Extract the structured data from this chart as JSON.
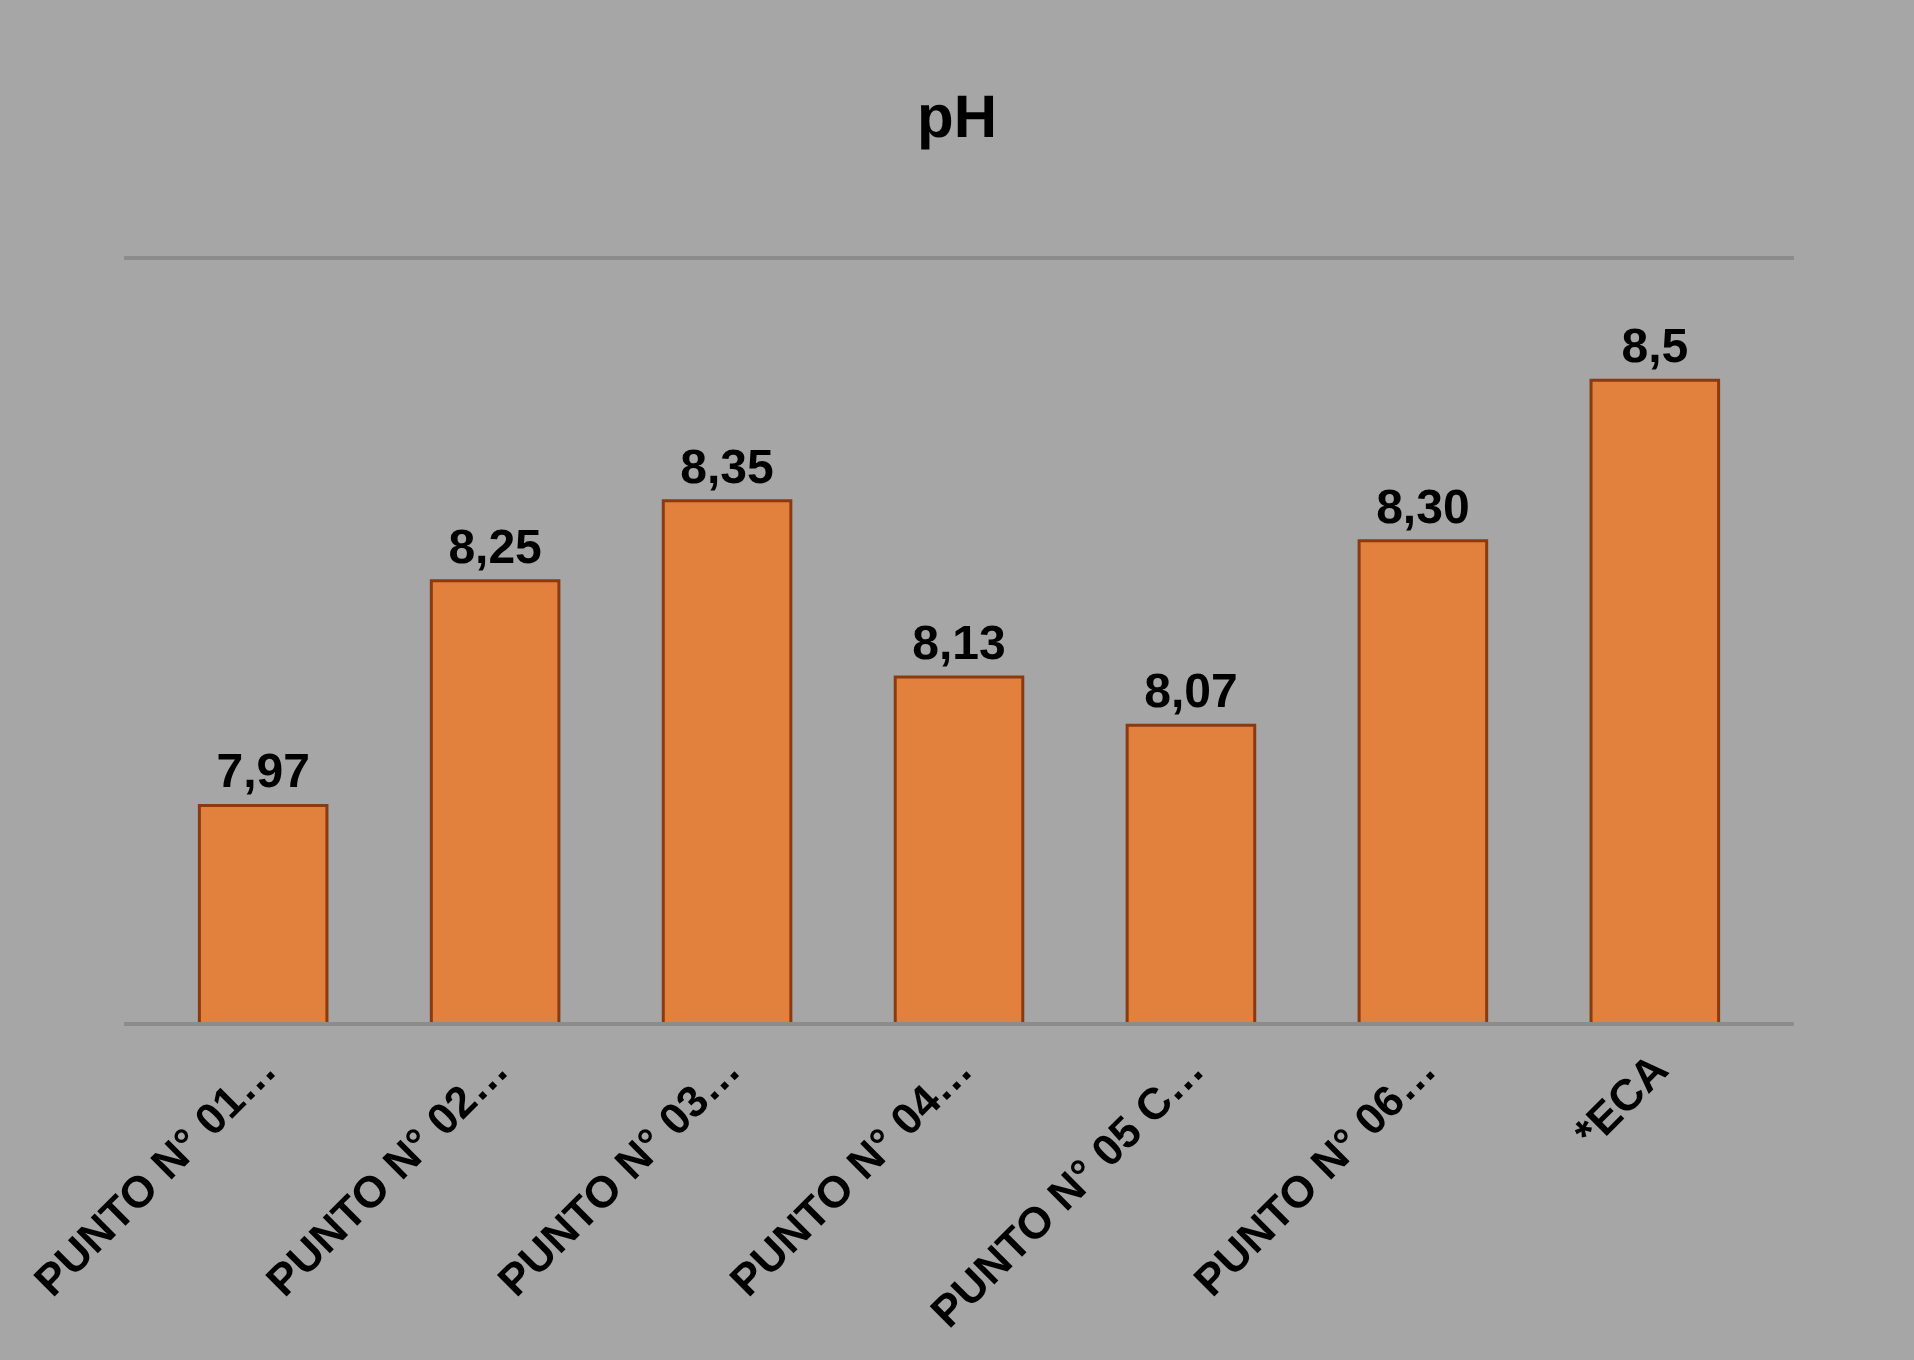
{
  "chart_data": {
    "type": "bar",
    "title": "pH",
    "categories": [
      "PUNTO N° 01…",
      "PUNTO N° 02…",
      "PUNTO N° 03…",
      "PUNTO N° 04…",
      "PUNTO N° 05 C…",
      "PUNTO N° 06…",
      "*ECA"
    ],
    "series": [
      {
        "color": "#e2813d",
        "values": [
          7.97,
          8.25,
          8.35,
          8.13,
          8.07,
          8.3,
          8.5
        ],
        "value_labels": [
          "7,97",
          "8,25",
          "8,35",
          "8,13",
          "8,07",
          "8,30",
          "8,5"
        ]
      }
    ],
    "ylim": [
      7.7,
      8.65
    ],
    "tick_labels": "x",
    "grid": false
  }
}
